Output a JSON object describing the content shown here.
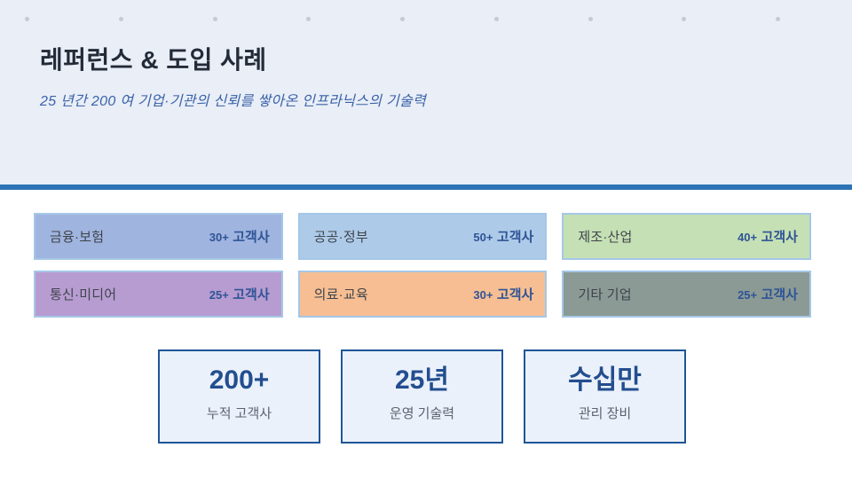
{
  "slide": {
    "title": "레퍼런스 & 도입 사례",
    "subtitle": "25 년간 200 여 기업·기관의 신뢰를 쌓아온 인프라닉스의 기술력"
  },
  "colors": {
    "header_background": "#E9EEF7",
    "divider": "#2E73B5",
    "count_text": "#2F5496",
    "stat_border": "#1F5597",
    "stat_background": "#EBF1FA",
    "card_border": "#A5C7E7"
  },
  "categories": [
    {
      "label": "금융·보험",
      "count": "30+",
      "unit": "고객사",
      "color": "#9FB4DF"
    },
    {
      "label": "공공·정부",
      "count": "50+",
      "unit": "고객사",
      "color": "#ADCBE9"
    },
    {
      "label": "제조·산업",
      "count": "40+",
      "unit": "고객사",
      "color": "#C5E0B4"
    },
    {
      "label": "통신·미디어",
      "count": "25+",
      "unit": "고객사",
      "color": "#B79CD1"
    },
    {
      "label": "의료·교육",
      "count": "30+",
      "unit": "고객사",
      "color": "#F6BE92"
    },
    {
      "label": "기타 기업",
      "count": "25+",
      "unit": "고객사",
      "color": "#8B9A95"
    }
  ],
  "stats": [
    {
      "value": "200+",
      "label": "누적 고객사"
    },
    {
      "value": "25년",
      "label": "운영 기술력"
    },
    {
      "value": "수십만",
      "label": "관리 장비"
    }
  ]
}
